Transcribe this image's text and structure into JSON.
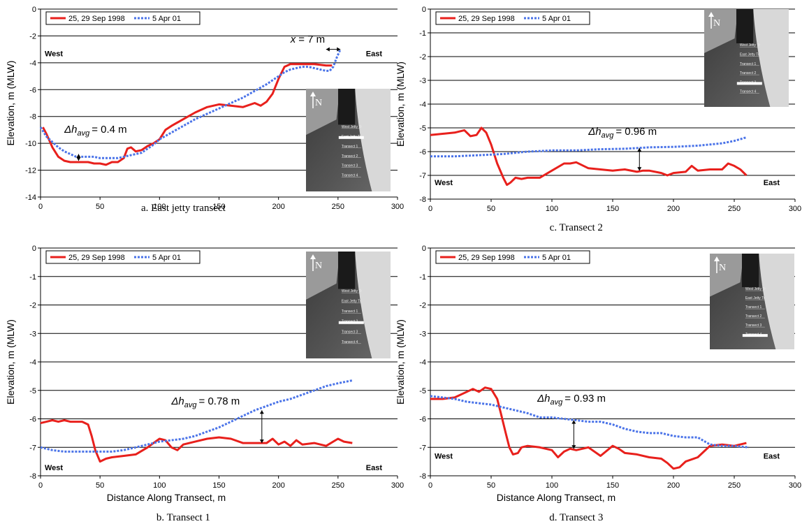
{
  "series_style": {
    "survey_1998": {
      "color": "#e8201c",
      "dash": ""
    },
    "survey_2001": {
      "color": "#4a73e8",
      "dash": "3 2"
    }
  },
  "chart_data": [
    {
      "id": "a",
      "type": "line",
      "caption": "a. East jetty transect",
      "xlabel": "",
      "ylabel": "Elevation, m (MLW)",
      "xlim": [
        0,
        300
      ],
      "ylim": [
        -14,
        0
      ],
      "yticks": [
        -14,
        -12,
        -10,
        -8,
        -6,
        -4,
        -2,
        0
      ],
      "xticks": [
        0,
        50,
        100,
        150,
        200,
        250,
        300
      ],
      "ygrid": [
        -12,
        -10,
        -8,
        -6,
        -4,
        -2,
        0
      ],
      "west_label": "West",
      "east_label": "East",
      "west_y": -3.3,
      "east_y": -3.3,
      "legend": [
        "25, 29 Sep 1998",
        "5 Apr 01"
      ],
      "series": [
        {
          "name": "25, 29 Sep 1998",
          "x": [
            2,
            5,
            10,
            15,
            20,
            25,
            30,
            35,
            40,
            45,
            50,
            55,
            60,
            65,
            70,
            73,
            76,
            80,
            85,
            90,
            95,
            100,
            105,
            110,
            120,
            130,
            140,
            150,
            160,
            170,
            180,
            185,
            190,
            195,
            200,
            205,
            210,
            220,
            230,
            240,
            245
          ],
          "y": [
            -8.8,
            -9.3,
            -10.3,
            -11.0,
            -11.3,
            -11.4,
            -11.4,
            -11.4,
            -11.4,
            -11.5,
            -11.5,
            -11.6,
            -11.4,
            -11.4,
            -11.1,
            -10.4,
            -10.3,
            -10.6,
            -10.5,
            -10.2,
            -10.0,
            -9.7,
            -9.0,
            -8.7,
            -8.2,
            -7.7,
            -7.3,
            -7.1,
            -7.2,
            -7.3,
            -7.0,
            -7.2,
            -6.9,
            -6.3,
            -5.2,
            -4.3,
            -4.1,
            -4.1,
            -4.1,
            -4.2,
            -4.2
          ]
        },
        {
          "name": "5 Apr 01",
          "x": [
            0,
            5,
            10,
            15,
            20,
            25,
            30,
            35,
            40,
            45,
            50,
            55,
            60,
            65,
            70,
            75,
            80,
            85,
            90,
            95,
            100,
            110,
            120,
            130,
            140,
            150,
            160,
            170,
            180,
            190,
            195,
            200,
            205,
            210,
            215,
            220,
            225,
            230,
            235,
            240,
            243,
            246,
            249,
            252
          ],
          "y": [
            -8.8,
            -9.5,
            -9.9,
            -10.3,
            -10.6,
            -10.8,
            -11.0,
            -11.0,
            -11.0,
            -11.0,
            -11.1,
            -11.1,
            -11.1,
            -11.1,
            -11.0,
            -10.9,
            -10.8,
            -10.7,
            -10.4,
            -10.1,
            -9.7,
            -9.2,
            -8.7,
            -8.2,
            -7.8,
            -7.4,
            -7.0,
            -6.6,
            -6.1,
            -5.6,
            -5.3,
            -5.0,
            -4.7,
            -4.5,
            -4.4,
            -4.3,
            -4.3,
            -4.4,
            -4.5,
            -4.6,
            -4.6,
            -4.3,
            -3.6,
            -3.0
          ]
        }
      ],
      "delta_label": "Δh",
      "delta_sub": "avg",
      "delta_value": "= 0.4 m",
      "delta_label_pos": [
        20,
        -9.2
      ],
      "delta_arrow": {
        "x": 32,
        "y1": -11.3,
        "y2": -10.8
      },
      "extra_label": {
        "italic": "x",
        "text": "= 7 m",
        "pos": [
          210,
          -2.5
        ]
      },
      "extra_arrow": {
        "y": -3.0,
        "x1": 240,
        "x2": 252
      },
      "inset": {
        "labels": [
          "West Jetty Tr",
          "East Jetty Tr",
          "Transect 1",
          "Transect 2",
          "Transect 3",
          "Transect 4"
        ],
        "highlight": 1,
        "north": "N"
      }
    },
    {
      "id": "c",
      "type": "line",
      "caption": "c. Transect 2",
      "xlabel": "",
      "ylabel": "Elevation, m (MLW)",
      "xlim": [
        0,
        300
      ],
      "ylim": [
        -8,
        0
      ],
      "yticks": [
        -8,
        -7,
        -6,
        -5,
        -4,
        -3,
        -2,
        -1,
        0
      ],
      "xticks": [
        0,
        50,
        100,
        150,
        200,
        250,
        300
      ],
      "ygrid": [
        -7,
        -6,
        -5,
        -4,
        -3,
        -2,
        -1,
        0
      ],
      "west_label": "West",
      "east_label": "East",
      "west_y": -7.3,
      "east_y": -7.3,
      "legend": [
        "25, 29 Sep 1998",
        "5 Apr 01"
      ],
      "series": [
        {
          "name": "25, 29 Sep 1998",
          "x": [
            0,
            10,
            20,
            28,
            33,
            38,
            42,
            46,
            50,
            55,
            60,
            63,
            66,
            70,
            75,
            80,
            90,
            100,
            110,
            115,
            120,
            130,
            140,
            150,
            160,
            170,
            175,
            180,
            190,
            195,
            200,
            210,
            215,
            220,
            230,
            240,
            245,
            250,
            255,
            260
          ],
          "y": [
            -5.3,
            -5.25,
            -5.2,
            -5.1,
            -5.35,
            -5.3,
            -5.0,
            -5.2,
            -5.7,
            -6.5,
            -7.1,
            -7.4,
            -7.3,
            -7.1,
            -7.15,
            -7.1,
            -7.1,
            -6.8,
            -6.5,
            -6.5,
            -6.45,
            -6.7,
            -6.75,
            -6.8,
            -6.75,
            -6.85,
            -6.8,
            -6.8,
            -6.9,
            -7.0,
            -6.9,
            -6.85,
            -6.6,
            -6.8,
            -6.75,
            -6.75,
            -6.5,
            -6.6,
            -6.75,
            -7.0
          ]
        },
        {
          "name": "5 Apr 01",
          "x": [
            0,
            20,
            40,
            60,
            80,
            100,
            120,
            140,
            160,
            180,
            200,
            220,
            240,
            250,
            260
          ],
          "y": [
            -6.2,
            -6.2,
            -6.15,
            -6.1,
            -6.0,
            -5.95,
            -5.95,
            -5.9,
            -5.88,
            -5.82,
            -5.8,
            -5.75,
            -5.65,
            -5.55,
            -5.4
          ]
        }
      ],
      "delta_label": "Δh",
      "delta_sub": "avg",
      "delta_value": "= 0.96 m",
      "delta_label_pos": [
        130,
        -5.3
      ],
      "delta_arrow": {
        "x": 172,
        "y1": -6.8,
        "y2": -5.85
      },
      "inset": {
        "labels": [
          "West Jetty Tr",
          "East Jetty Tr",
          "Transect 1",
          "Transect 2",
          "Transect 3",
          "Transect 4"
        ],
        "highlight": 4,
        "north": "N"
      }
    },
    {
      "id": "b",
      "type": "line",
      "caption": "b. Transect 1",
      "xlabel": "Distance Along Transect, m",
      "ylabel": "Elevation, m (MLW)",
      "xlim": [
        0,
        300
      ],
      "ylim": [
        -8,
        0
      ],
      "yticks": [
        -8,
        -7,
        -6,
        -5,
        -4,
        -3,
        -2,
        -1,
        0
      ],
      "xticks": [
        0,
        50,
        100,
        150,
        200,
        250,
        300
      ],
      "ygrid": [
        -7,
        -6,
        -5,
        -4,
        -3,
        -2,
        -1,
        0
      ],
      "west_label": "West",
      "east_label": "East",
      "west_y": -7.7,
      "east_y": -7.7,
      "legend": [
        "25, 29 Sep 1998",
        "5 Apr 01"
      ],
      "series": [
        {
          "name": "25, 29 Sep 1998",
          "x": [
            0,
            5,
            10,
            15,
            20,
            25,
            30,
            35,
            40,
            43,
            46,
            50,
            55,
            60,
            70,
            80,
            90,
            95,
            100,
            105,
            110,
            115,
            120,
            130,
            140,
            150,
            160,
            170,
            180,
            190,
            195,
            200,
            205,
            210,
            215,
            220,
            230,
            240,
            250,
            255,
            262
          ],
          "y": [
            -6.15,
            -6.1,
            -6.05,
            -6.1,
            -6.05,
            -6.1,
            -6.1,
            -6.1,
            -6.2,
            -6.6,
            -7.1,
            -7.5,
            -7.4,
            -7.35,
            -7.3,
            -7.25,
            -7.0,
            -6.85,
            -6.7,
            -6.75,
            -7.0,
            -7.1,
            -6.9,
            -6.8,
            -6.7,
            -6.65,
            -6.7,
            -6.85,
            -6.85,
            -6.85,
            -6.7,
            -6.9,
            -6.8,
            -6.95,
            -6.75,
            -6.9,
            -6.85,
            -6.95,
            -6.7,
            -6.8,
            -6.85
          ]
        },
        {
          "name": "5 Apr 01",
          "x": [
            0,
            10,
            20,
            30,
            40,
            50,
            60,
            70,
            80,
            90,
            100,
            110,
            120,
            130,
            140,
            150,
            160,
            170,
            180,
            190,
            200,
            210,
            220,
            230,
            240,
            250,
            262
          ],
          "y": [
            -7.0,
            -7.1,
            -7.15,
            -7.15,
            -7.15,
            -7.15,
            -7.15,
            -7.1,
            -7.0,
            -6.9,
            -6.8,
            -6.75,
            -6.7,
            -6.6,
            -6.45,
            -6.3,
            -6.1,
            -5.9,
            -5.7,
            -5.55,
            -5.4,
            -5.3,
            -5.15,
            -5.0,
            -4.85,
            -4.75,
            -4.65
          ]
        }
      ],
      "delta_label": "Δh",
      "delta_sub": "avg",
      "delta_value": "= 0.78 m",
      "delta_label_pos": [
        110,
        -5.5
      ],
      "delta_arrow": {
        "x": 186,
        "y1": -6.85,
        "y2": -5.7
      },
      "inset": {
        "labels": [
          "West Jetty Tr",
          "East Jetty Tr",
          "Transect 1",
          "Transect 2",
          "Transect 3",
          "Transect 4"
        ],
        "highlight": 3,
        "north": "N"
      }
    },
    {
      "id": "d",
      "type": "line",
      "caption": "d. Transect 3",
      "xlabel": "Distance Along Transect, m",
      "ylabel": "Elevation, m (MLW)",
      "xlim": [
        0,
        300
      ],
      "ylim": [
        -8,
        0
      ],
      "yticks": [
        -8,
        -7,
        -6,
        -5,
        -4,
        -3,
        -2,
        -1,
        0
      ],
      "xticks": [
        0,
        50,
        100,
        150,
        200,
        250,
        300
      ],
      "ygrid": [
        -7,
        -6,
        -5,
        -4,
        -3,
        -2,
        -1,
        0
      ],
      "west_label": "West",
      "east_label": "East",
      "west_y": -7.3,
      "east_y": -7.3,
      "legend": [
        "25, 29 Sep 1998",
        "5 Apr 01"
      ],
      "series": [
        {
          "name": "25, 29 Sep 1998",
          "x": [
            0,
            10,
            20,
            30,
            35,
            40,
            45,
            50,
            55,
            58,
            62,
            65,
            68,
            72,
            75,
            80,
            90,
            100,
            105,
            110,
            115,
            120,
            130,
            140,
            150,
            155,
            160,
            170,
            180,
            190,
            195,
            200,
            205,
            210,
            220,
            230,
            240,
            250,
            260
          ],
          "y": [
            -5.3,
            -5.3,
            -5.25,
            -5.05,
            -4.95,
            -5.05,
            -4.9,
            -4.95,
            -5.3,
            -5.8,
            -6.5,
            -7.0,
            -7.25,
            -7.2,
            -7.0,
            -6.95,
            -7.0,
            -7.1,
            -7.35,
            -7.15,
            -7.05,
            -7.1,
            -7.0,
            -7.3,
            -6.95,
            -7.05,
            -7.2,
            -7.25,
            -7.35,
            -7.4,
            -7.55,
            -7.75,
            -7.7,
            -7.5,
            -7.35,
            -6.95,
            -6.9,
            -6.95,
            -6.85
          ]
        },
        {
          "name": "5 Apr 01",
          "x": [
            0,
            10,
            20,
            30,
            40,
            50,
            60,
            70,
            80,
            90,
            100,
            110,
            120,
            130,
            140,
            150,
            160,
            170,
            180,
            190,
            200,
            210,
            220,
            230,
            240,
            250,
            262
          ],
          "y": [
            -5.2,
            -5.25,
            -5.3,
            -5.4,
            -5.45,
            -5.5,
            -5.6,
            -5.7,
            -5.8,
            -5.95,
            -5.95,
            -6.0,
            -6.05,
            -6.1,
            -6.1,
            -6.2,
            -6.35,
            -6.45,
            -6.5,
            -6.5,
            -6.6,
            -6.65,
            -6.65,
            -6.9,
            -6.95,
            -6.95,
            -7.0
          ]
        }
      ],
      "delta_label": "Δh",
      "delta_sub": "avg",
      "delta_value": "= 0.93 m",
      "delta_label_pos": [
        88,
        -5.4
      ],
      "delta_arrow": {
        "x": 118,
        "y1": -7.05,
        "y2": -6.05
      },
      "inset": {
        "labels": [
          "West Jetty Tr",
          "East Jetty Tr",
          "Transect 1",
          "Transect 2",
          "Transect 3",
          "Transect 4"
        ],
        "highlight": 5,
        "north": "N"
      }
    }
  ]
}
